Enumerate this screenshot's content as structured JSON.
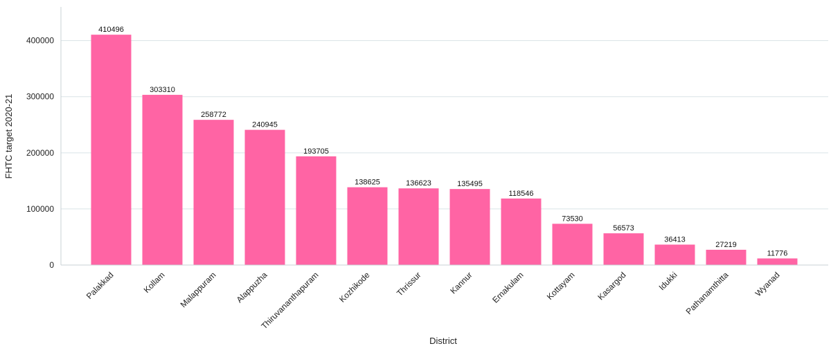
{
  "chart_data": {
    "type": "bar",
    "title": "",
    "xlabel": "District",
    "ylabel": "FHTC target 2020-21",
    "categories": [
      "Palakkad",
      "Kollam",
      "Malappuram",
      "Alappuzha",
      "Thiruvananthapuram",
      "Kozhikode",
      "Thrissur",
      "Kannur",
      "Ernakulam",
      "Kottayam",
      "Kasargod",
      "Idukki",
      "Pathanamthitta",
      "Wyanad"
    ],
    "values": [
      410496,
      303310,
      258772,
      240945,
      193705,
      138625,
      136623,
      135495,
      118546,
      73530,
      56573,
      36413,
      27219,
      11776
    ],
    "ylim": [
      0,
      460000
    ],
    "yticks": [
      0,
      100000,
      200000,
      300000,
      400000
    ],
    "grid": true,
    "legend": "none",
    "bar_color": "#ff64a4"
  }
}
